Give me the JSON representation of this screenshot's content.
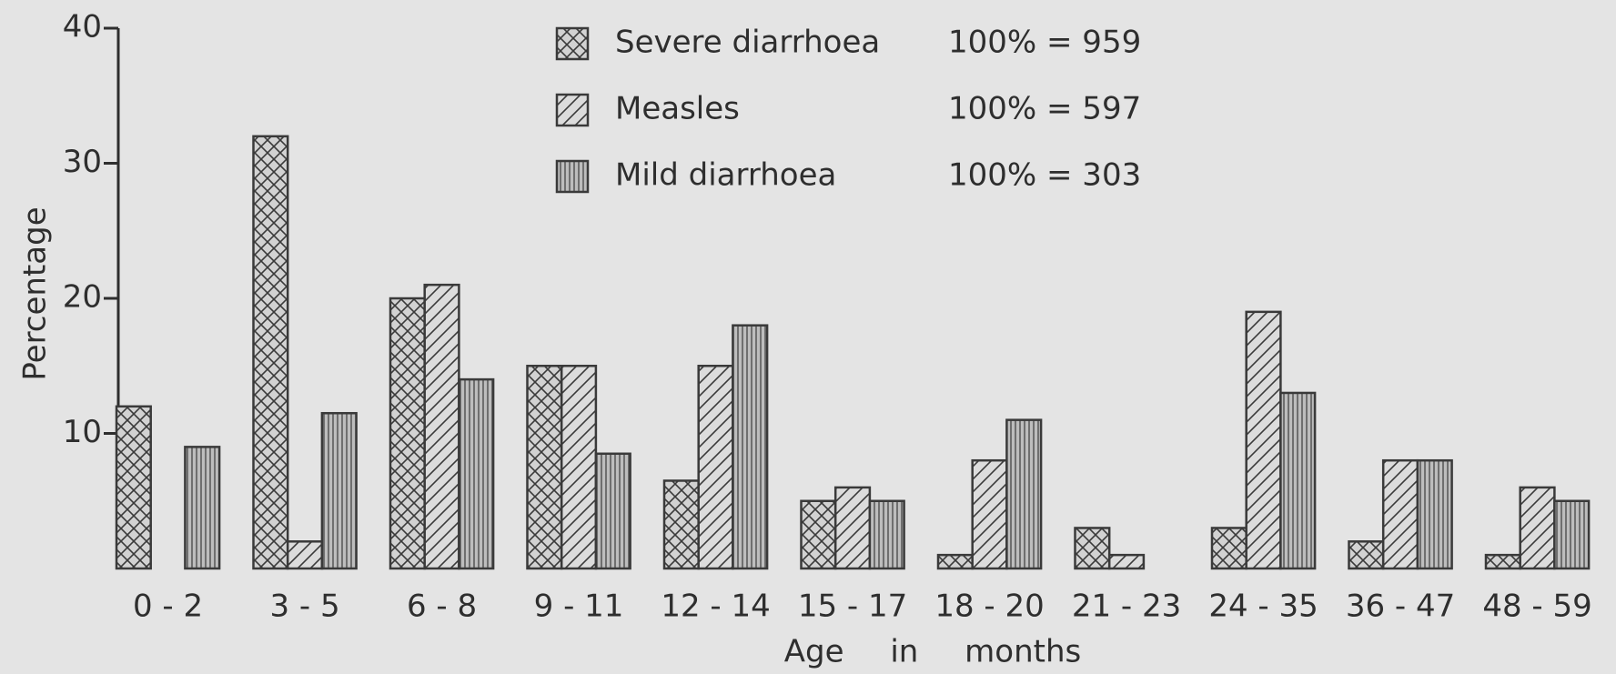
{
  "chart_data": {
    "type": "bar",
    "y_label": "Percentage",
    "x_label": "Age in months",
    "categories": [
      "0 - 2",
      "3 - 5",
      "6 - 8",
      "9 - 11",
      "12 - 14",
      "15 - 17",
      "18 - 20",
      "21 - 23",
      "24 - 35",
      "36 - 47",
      "48 - 59"
    ],
    "series": [
      {
        "name": "Severe diarrhoea",
        "total_label": "100% = 959",
        "pattern": "crosshatch",
        "color": "#3a3a3a",
        "values": [
          12,
          32,
          20,
          15,
          6.5,
          5,
          1,
          3,
          3,
          2,
          1
        ]
      },
      {
        "name": "Measles",
        "total_label": "100% = 597",
        "pattern": "diagonal",
        "color": "#3a3a3a",
        "values": [
          0,
          2,
          21,
          15,
          15,
          6,
          8,
          1,
          19,
          8,
          6
        ]
      },
      {
        "name": "Mild diarrhoea",
        "total_label": "100% = 303",
        "pattern": "vertical",
        "color": "#3a3a3a",
        "values": [
          9,
          11.5,
          14,
          8.5,
          18,
          5,
          11,
          0,
          13,
          8,
          5
        ]
      }
    ],
    "ylim": [
      0,
      40
    ],
    "yticks": [
      10,
      20,
      30,
      40
    ]
  }
}
